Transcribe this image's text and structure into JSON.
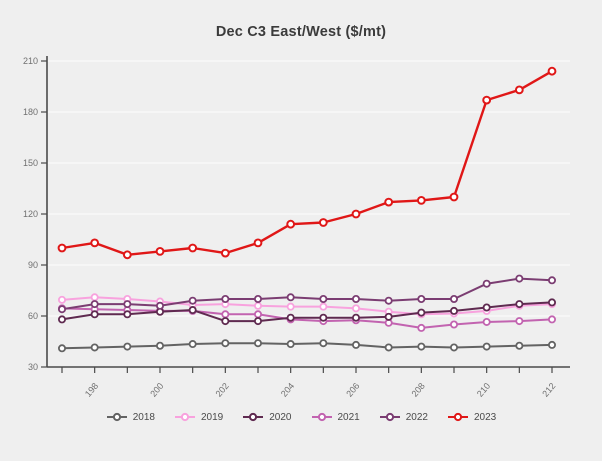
{
  "page": {
    "background_color": "#efefef",
    "accent_color": "#e01717"
  },
  "chart_data": {
    "type": "line",
    "title": "Dec C3 East/West ($/mt)",
    "x": [
      197,
      198,
      199,
      200,
      201,
      202,
      203,
      204,
      205,
      206,
      207,
      208,
      209,
      210,
      211,
      212
    ],
    "x_tick_labels_shown": [
      "198",
      "200",
      "202",
      "204",
      "206",
      "208",
      "210",
      "212"
    ],
    "xlabel": "",
    "ylabel": "",
    "ylim": [
      30,
      210
    ],
    "yticks": [
      30,
      60,
      90,
      120,
      150,
      180,
      210
    ],
    "grid": "horizontal",
    "legend_position": "bottom",
    "marker": "open-circle",
    "series": [
      {
        "name": "2018",
        "color": "#636363",
        "values": [
          41,
          41.5,
          42,
          42.5,
          43.5,
          44,
          44,
          43.5,
          44,
          43,
          41.5,
          42,
          41.5,
          42,
          42.5,
          43
        ]
      },
      {
        "name": "2019",
        "color": "#f8a2de",
        "values": [
          69.5,
          71,
          70,
          68.5,
          66.5,
          67,
          66,
          65.5,
          65.5,
          64.5,
          62.5,
          61,
          61.5,
          63,
          66,
          67
        ]
      },
      {
        "name": "2020",
        "color": "#5f2a50",
        "values": [
          58,
          61,
          61,
          62.5,
          63.5,
          57,
          57,
          59,
          59,
          59,
          59.5,
          62,
          63,
          65,
          67,
          68
        ]
      },
      {
        "name": "2021",
        "color": "#c263b0",
        "values": [
          64.5,
          64,
          63.5,
          63,
          63,
          61,
          61,
          58,
          57,
          57.5,
          56,
          53,
          55,
          56.5,
          57,
          58
        ]
      },
      {
        "name": "2022",
        "color": "#7b3d72",
        "values": [
          64,
          67,
          67,
          66,
          69,
          70,
          70,
          71,
          70,
          70,
          69,
          70,
          70,
          79,
          82,
          81
        ]
      },
      {
        "name": "2023",
        "color": "#e01717",
        "values": [
          100,
          103,
          96,
          98,
          100,
          97,
          103,
          114,
          115,
          120,
          127,
          128,
          130,
          187,
          193,
          204
        ]
      }
    ]
  }
}
